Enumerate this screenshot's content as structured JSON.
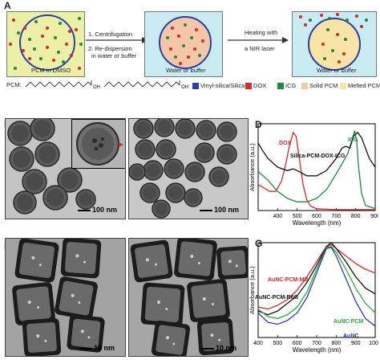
{
  "panel_a": {
    "letter": "A",
    "box1_label": "PCM in DMSO",
    "step1_line1": "1. Centrifugation",
    "step1_line2": "2. Re-dispersion",
    "step1_line3": "in water or buffer",
    "box2_label": "Water or buffer",
    "step2_line1": "Heating with",
    "step2_line2": "a NIR laser",
    "box3_label": "Water or buffer",
    "pcm_label": "PCM:",
    "legend": [
      {
        "label": "Vinyl-silica/Silica",
        "color": "#2c3ea8"
      },
      {
        "label": "DOX",
        "color": "#d42a2a"
      },
      {
        "label": "ICG",
        "color": "#1f8a3a"
      },
      {
        "label": "Solid PCM",
        "color": "#f6c6a8"
      },
      {
        "label": "Melted PCM",
        "color": "#f9e3a5"
      }
    ],
    "colors": {
      "box1_bg": "#ecf0a6",
      "water_bg": "#c9ecf2",
      "circle": "#2c3ea8"
    }
  },
  "panel_b": {
    "letter": "B",
    "scale": "100 nm"
  },
  "panel_c": {
    "letter": "C",
    "scale": "100 nm"
  },
  "panel_e": {
    "letter": "E",
    "scale": "10 nm"
  },
  "panel_f": {
    "letter": "F",
    "scale": "10 nm"
  },
  "panel_d": {
    "letter": "D"
  },
  "panel_g": {
    "letter": "G"
  },
  "chart_data": [
    {
      "type": "line",
      "panel": "D",
      "xlabel": "Wavelength (nm)",
      "ylabel": "Absorbance (a.u.)",
      "xlim": [
        300,
        900
      ],
      "xticks": [
        400,
        500,
        600,
        700,
        800,
        900
      ],
      "series": [
        {
          "name": "DOX",
          "color": "#d42a2a",
          "x": [
            300,
            330,
            360,
            390,
            420,
            440,
            460,
            480,
            495,
            510,
            530,
            550,
            570,
            600,
            700,
            800,
            900
          ],
          "y": [
            0.3,
            0.26,
            0.22,
            0.22,
            0.34,
            0.52,
            0.74,
            0.9,
            0.85,
            0.62,
            0.3,
            0.12,
            0.05,
            0.02,
            0.01,
            0.01,
            0.01
          ]
        },
        {
          "name": "ICG",
          "color": "#1f8a3a",
          "x": [
            300,
            350,
            400,
            450,
            500,
            550,
            600,
            650,
            700,
            720,
            740,
            760,
            780,
            795,
            805,
            815,
            830,
            850,
            900
          ],
          "y": [
            0.45,
            0.35,
            0.22,
            0.14,
            0.1,
            0.1,
            0.14,
            0.24,
            0.42,
            0.5,
            0.58,
            0.66,
            0.8,
            0.92,
            0.8,
            0.5,
            0.2,
            0.06,
            0.02
          ]
        },
        {
          "name": "Silica-PCM-DOX-ICG",
          "color": "#111111",
          "x": [
            300,
            320,
            350,
            400,
            450,
            480,
            500,
            550,
            600,
            650,
            700,
            730,
            750,
            770,
            790,
            810,
            830,
            850,
            870,
            900
          ],
          "y": [
            0.78,
            0.7,
            0.6,
            0.5,
            0.46,
            0.48,
            0.46,
            0.4,
            0.4,
            0.46,
            0.6,
            0.72,
            0.74,
            0.72,
            0.86,
            0.9,
            0.84,
            0.72,
            0.6,
            0.5
          ]
        }
      ]
    },
    {
      "type": "line",
      "panel": "G",
      "xlabel": "Wavelength (nm)",
      "ylabel": "Absorbance (a.u.)",
      "xlim": [
        400,
        1000
      ],
      "xticks": [
        400,
        500,
        600,
        700,
        800,
        900,
        1000
      ],
      "series": [
        {
          "name": "AuNC-PCM-MB",
          "color": "#d42a2a",
          "x": [
            400,
            450,
            500,
            550,
            600,
            650,
            700,
            750,
            775,
            800,
            850,
            900,
            950,
            1000
          ],
          "y": [
            0.32,
            0.3,
            0.34,
            0.4,
            0.5,
            0.64,
            0.8,
            0.96,
            0.98,
            0.94,
            0.86,
            0.78,
            0.72,
            0.68
          ]
        },
        {
          "name": "AuNC-PCM-R6G",
          "color": "#111111",
          "x": [
            400,
            450,
            500,
            550,
            600,
            650,
            700,
            750,
            775,
            800,
            850,
            900,
            950,
            1000
          ],
          "y": [
            0.28,
            0.24,
            0.28,
            0.36,
            0.44,
            0.58,
            0.76,
            0.96,
            1.0,
            0.94,
            0.8,
            0.64,
            0.52,
            0.46
          ]
        },
        {
          "name": "AuNC-PCM",
          "color": "#2eaa3a",
          "x": [
            400,
            450,
            500,
            550,
            600,
            650,
            700,
            750,
            775,
            800,
            850,
            900,
            950,
            1000
          ],
          "y": [
            0.3,
            0.22,
            0.2,
            0.24,
            0.32,
            0.48,
            0.72,
            0.95,
            0.96,
            0.9,
            0.72,
            0.52,
            0.36,
            0.26
          ]
        },
        {
          "name": "AuNC",
          "color": "#2c3ea8",
          "x": [
            400,
            450,
            500,
            550,
            600,
            650,
            700,
            750,
            775,
            800,
            850,
            900,
            950,
            1000
          ],
          "y": [
            0.26,
            0.16,
            0.14,
            0.18,
            0.26,
            0.42,
            0.68,
            0.94,
            0.95,
            0.86,
            0.62,
            0.38,
            0.2,
            0.12
          ]
        }
      ]
    }
  ]
}
